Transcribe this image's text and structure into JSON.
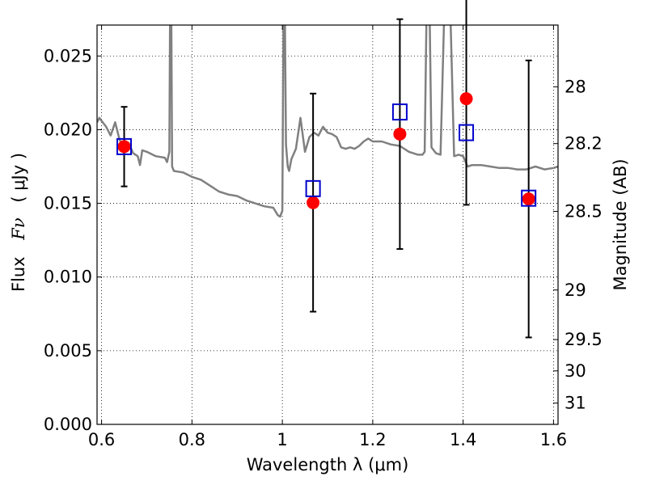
{
  "chart_data": {
    "type": "scatter",
    "xlabel": "Wavelength  λ (μm)",
    "ylabel_text": "Flux",
    "ylabel_math": "Fν",
    "ylabel_unit": "( μJy )",
    "y2label": "Magnitude (AB)",
    "xlim": [
      0.59,
      1.61
    ],
    "ylim": [
      0.0,
      0.0271
    ],
    "grid": true,
    "x_ticks": [
      0.6,
      0.8,
      1.0,
      1.2,
      1.4,
      1.6
    ],
    "x_tick_labels": [
      "0.6",
      "0.8",
      "1",
      "1.2",
      "1.4",
      "1.6"
    ],
    "y_ticks": [
      0.0,
      0.005,
      0.01,
      0.015,
      0.02,
      0.025
    ],
    "y_tick_labels": [
      "0.000",
      "0.005",
      "0.010",
      "0.015",
      "0.020",
      "0.025"
    ],
    "y2_ticks": [
      28,
      28.2,
      28.5,
      29,
      29.5,
      30,
      31
    ],
    "y2_tick_labels": [
      "28",
      "28.2",
      "28.5",
      "29",
      "29.5",
      "30",
      "31"
    ],
    "colors": {
      "spectrum": "#808080",
      "observed": "#ff0000",
      "model": "#0000cc",
      "errorbar": "#000000"
    },
    "spectrum": {
      "x": [
        0.59,
        0.595,
        0.6,
        0.61,
        0.62,
        0.63,
        0.64,
        0.65,
        0.66,
        0.67,
        0.68,
        0.685,
        0.69,
        0.7,
        0.72,
        0.74,
        0.745,
        0.75,
        0.752,
        0.754,
        0.756,
        0.76,
        0.78,
        0.8,
        0.82,
        0.84,
        0.86,
        0.88,
        0.9,
        0.92,
        0.94,
        0.96,
        0.98,
        0.99,
        0.995,
        1.0,
        1.003,
        1.005,
        1.008,
        1.012,
        1.015,
        1.02,
        1.03,
        1.04,
        1.05,
        1.06,
        1.07,
        1.08,
        1.09,
        1.1,
        1.11,
        1.12,
        1.13,
        1.14,
        1.15,
        1.16,
        1.17,
        1.18,
        1.19,
        1.2,
        1.22,
        1.24,
        1.26,
        1.28,
        1.3,
        1.31,
        1.315,
        1.32,
        1.325,
        1.33,
        1.34,
        1.35,
        1.36,
        1.37,
        1.38,
        1.39,
        1.4,
        1.41,
        1.42,
        1.44,
        1.46,
        1.48,
        1.5,
        1.52,
        1.54,
        1.56,
        1.58,
        1.6,
        1.61
      ],
      "y": [
        0.0205,
        0.0208,
        0.0206,
        0.0202,
        0.0196,
        0.0205,
        0.0193,
        0.0189,
        0.0191,
        0.0184,
        0.0182,
        0.0176,
        0.0186,
        0.0185,
        0.0182,
        0.0181,
        0.0178,
        0.0185,
        0.03,
        0.03,
        0.0175,
        0.0172,
        0.0171,
        0.0168,
        0.0166,
        0.0162,
        0.0158,
        0.0156,
        0.0155,
        0.0152,
        0.015,
        0.0148,
        0.0147,
        0.0142,
        0.0141,
        0.0145,
        0.03,
        0.03,
        0.019,
        0.0175,
        0.0172,
        0.018,
        0.0187,
        0.0208,
        0.0185,
        0.0195,
        0.0198,
        0.0196,
        0.0202,
        0.0198,
        0.0197,
        0.0195,
        0.0188,
        0.0187,
        0.0188,
        0.0187,
        0.0189,
        0.0192,
        0.0194,
        0.0192,
        0.0192,
        0.019,
        0.0189,
        0.0185,
        0.0183,
        0.0183,
        0.0185,
        0.03,
        0.03,
        0.0188,
        0.0184,
        0.0183,
        0.03,
        0.03,
        0.0182,
        0.0183,
        0.0182,
        0.0175,
        0.0176,
        0.0176,
        0.0175,
        0.0174,
        0.0174,
        0.0173,
        0.0173,
        0.0175,
        0.0173,
        0.0174,
        0.0175
      ]
    },
    "observed_points": [
      {
        "x": 0.65,
        "y": 0.01885,
        "err": 0.0027
      },
      {
        "x": 1.068,
        "y": 0.01505,
        "err": 0.0074
      },
      {
        "x": 1.26,
        "y": 0.0197,
        "err": 0.0078
      },
      {
        "x": 1.407,
        "y": 0.0221,
        "err": 0.0072
      },
      {
        "x": 1.545,
        "y": 0.0153,
        "err": 0.0094
      }
    ],
    "model_points": [
      {
        "x": 0.65,
        "y": 0.01885
      },
      {
        "x": 1.068,
        "y": 0.016
      },
      {
        "x": 1.26,
        "y": 0.0212
      },
      {
        "x": 1.407,
        "y": 0.0198
      },
      {
        "x": 1.545,
        "y": 0.01535
      }
    ]
  }
}
